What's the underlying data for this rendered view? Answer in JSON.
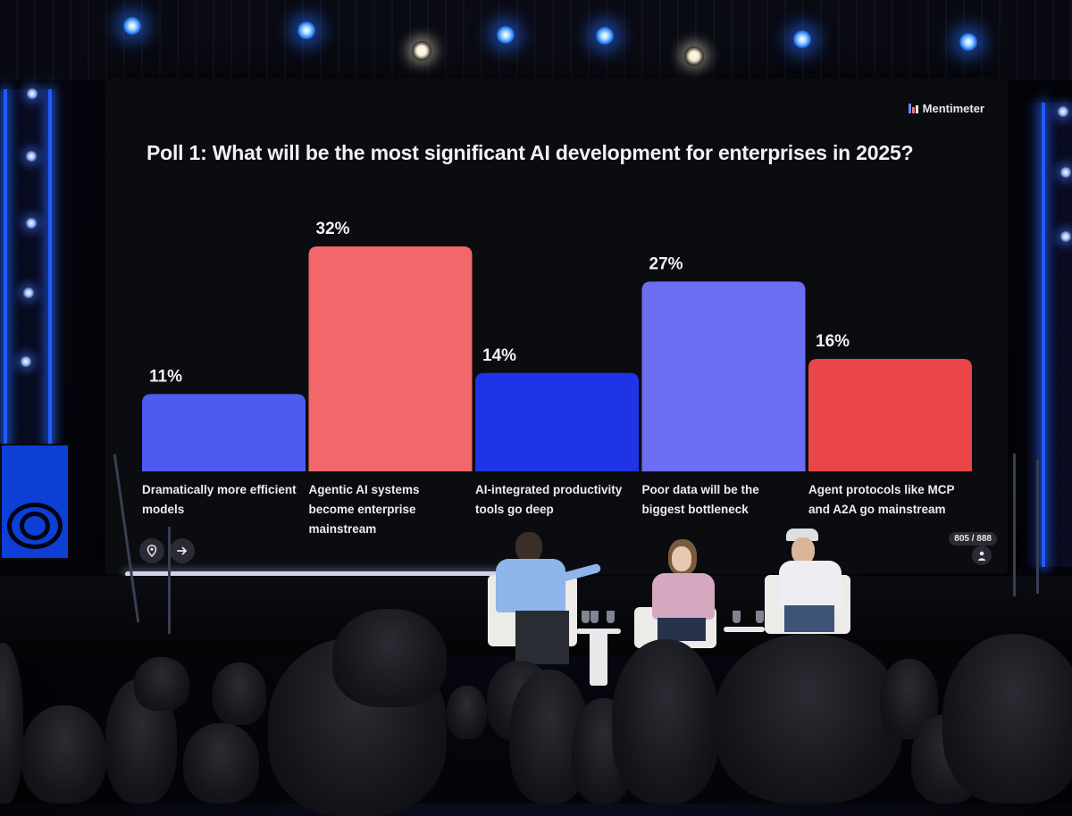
{
  "brand": {
    "name": "Mentimeter"
  },
  "poll": {
    "title": "Poll 1: What will be the most significant AI development for enterprises in 2025?",
    "counter": "805 / 888"
  },
  "icons": {
    "location": "map-pin-icon",
    "next": "arrow-right-icon",
    "participants": "person-icon"
  },
  "chart_data": {
    "type": "bar",
    "title": "Poll 1: What will be the most significant AI development for enterprises in 2025?",
    "categories": [
      [
        "Dramatically more efficient",
        "models"
      ],
      [
        "Agentic AI systems",
        "become enterprise",
        "mainstream"
      ],
      [
        "AI-integrated productivity",
        "tools go deep"
      ],
      [
        "Poor data will be the",
        "biggest bottleneck"
      ],
      [
        "Agent protocols like MCP",
        "and A2A go mainstream"
      ]
    ],
    "values": [
      11,
      32,
      14,
      27,
      16
    ],
    "value_labels": [
      "11%",
      "32%",
      "14%",
      "27%",
      "16%"
    ],
    "colors": [
      "#4c5cf0",
      "#f2676a",
      "#1f34e6",
      "#6b6ef2",
      "#ea4648"
    ],
    "ylim": [
      0,
      32
    ],
    "xlabel": "",
    "ylabel": "",
    "grid": false,
    "legend": "none"
  }
}
